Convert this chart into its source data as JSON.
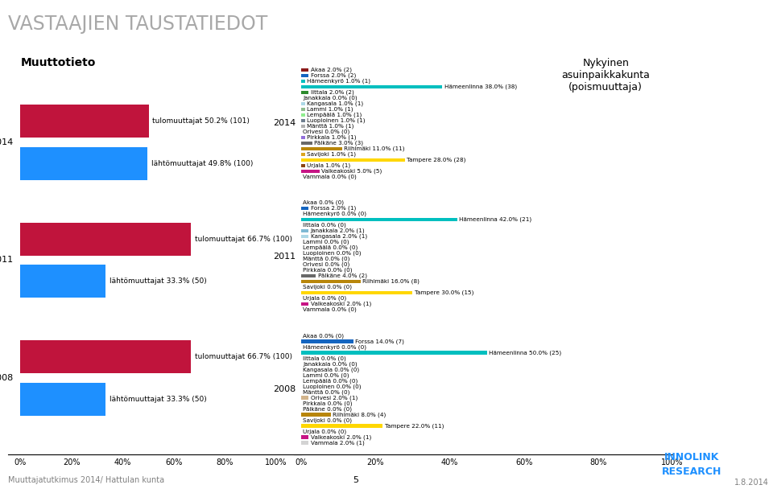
{
  "title": "VASTAAJIEN TAUSTATIEDOT",
  "subtitle_right": "Nykyinen\nasuinpaikkakunta\n(poismuuttaja)",
  "left_section_title": "Muuttotieto",
  "footer_left": "Muuttajatutkimus 2014/ Hattulan kunta",
  "footer_center": "5",
  "footer_date": "1.8.2014",
  "muutto": {
    "years": [
      2014,
      2011,
      2008
    ],
    "tulo": [
      50.2,
      66.7,
      66.7
    ],
    "lahto": [
      49.8,
      33.3,
      33.3
    ],
    "tulo_n": [
      101,
      100,
      100
    ],
    "lahto_n": [
      100,
      50,
      50
    ]
  },
  "cities": [
    "Akaa",
    "Forssa",
    "Hämeenkyrö",
    "Hämeenlinna",
    "Iittala",
    "Janakkala",
    "Kangasala",
    "Lammi",
    "Lempäälä",
    "Luopioinen",
    "Mänttä",
    "Orivesi",
    "Pirkkala",
    "Pälkäne",
    "Riihimäki",
    "Savijoki",
    "Tampere",
    "Urjala",
    "Valkeakoski",
    "Vammala"
  ],
  "data_2014": {
    "pct": [
      2.0,
      2.0,
      1.0,
      38.0,
      2.0,
      0.0,
      1.0,
      1.0,
      1.0,
      1.0,
      1.0,
      0.0,
      1.0,
      3.0,
      11.0,
      1.0,
      28.0,
      1.0,
      5.0,
      0.0
    ],
    "n": [
      2,
      2,
      1,
      38,
      2,
      0,
      1,
      1,
      1,
      1,
      1,
      0,
      1,
      3,
      11,
      1,
      28,
      1,
      5,
      0
    ]
  },
  "data_2011": {
    "pct": [
      0.0,
      2.0,
      0.0,
      42.0,
      0.0,
      2.0,
      2.0,
      0.0,
      0.0,
      0.0,
      0.0,
      0.0,
      0.0,
      4.0,
      16.0,
      0.0,
      30.0,
      0.0,
      2.0,
      0.0
    ],
    "n": [
      0,
      1,
      0,
      21,
      0,
      1,
      1,
      0,
      0,
      0,
      0,
      0,
      0,
      2,
      8,
      0,
      15,
      0,
      1,
      0
    ]
  },
  "data_2008": {
    "pct": [
      0.0,
      14.0,
      0.0,
      50.0,
      0.0,
      0.0,
      0.0,
      0.0,
      0.0,
      0.0,
      0.0,
      2.0,
      0.0,
      0.0,
      8.0,
      0.0,
      22.0,
      0.0,
      2.0,
      2.0
    ],
    "n": [
      0,
      7,
      0,
      25,
      0,
      0,
      0,
      0,
      0,
      0,
      0,
      1,
      0,
      0,
      4,
      0,
      11,
      0,
      1,
      1
    ]
  },
  "bar_colors_city": {
    "Akaa": "#8B1A1A",
    "Forssa": "#1565C0",
    "Hämeenkyrö": "#00BFBF",
    "Hämeenlinna": "#00BFBF",
    "Iittala": "#2E8B2E",
    "Janakkala": "#7EB9D4",
    "Kangasala": "#ADD8E6",
    "Lammi": "#8FBC8F",
    "Lempäälä": "#90EE90",
    "Luopioinen": "#708090",
    "Mänttä": "#B0B0B0",
    "Orivesi": "#D2B48C",
    "Pirkkala": "#9370DB",
    "Pälkäne": "#696969",
    "Riihimäki": "#B8860B",
    "Savijoki": "#DAA520",
    "Tampere": "#FFD700",
    "Urjala": "#8B4513",
    "Valkeakoski": "#C71585",
    "Vammala": "#D3D3D3"
  },
  "tulo_color": "#C0143C",
  "lahto_color": "#1E90FF",
  "bg_color": "#FFFFFF",
  "title_color": "#A8A8A8"
}
